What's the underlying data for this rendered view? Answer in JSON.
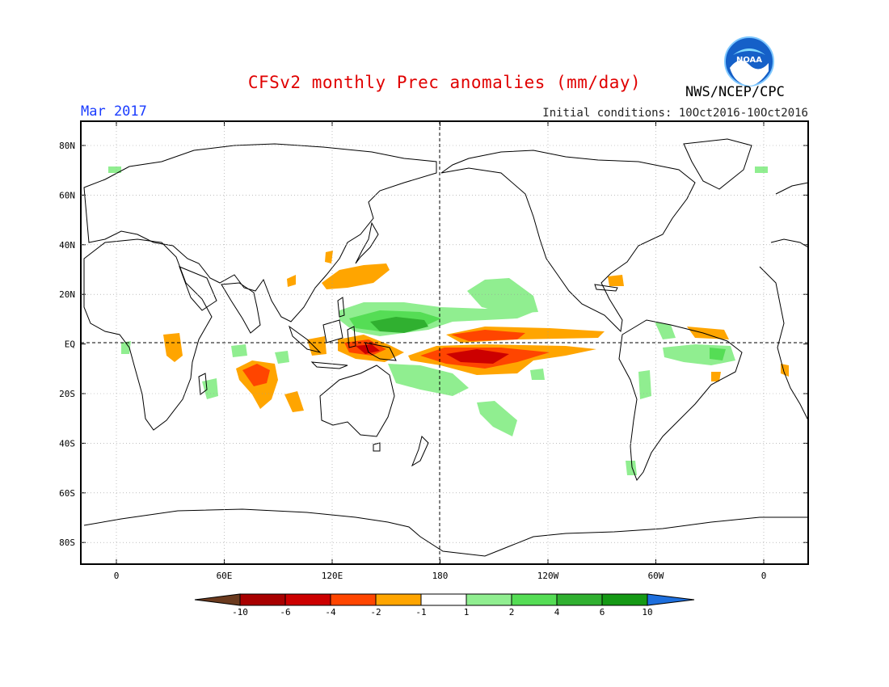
{
  "header": {
    "title": "CFSv2 monthly Prec anomalies (mm/day)",
    "title_color": "#e00000",
    "month": "Mar 2017",
    "month_color": "#1a3cff",
    "initial_conditions": "Initial conditions: 10Oct2016-10Oct2016",
    "agency": "NWS/NCEP/CPC",
    "logo_text": "NOAA"
  },
  "axes": {
    "lat_labels": [
      "80N",
      "60N",
      "40N",
      "20N",
      "EQ",
      "20S",
      "40S",
      "60S",
      "80S"
    ],
    "lon_labels": [
      "0",
      "60E",
      "120E",
      "180",
      "120W",
      "60W",
      "0"
    ]
  },
  "colorbar": {
    "tick_labels": [
      "-10",
      "-6",
      "-4",
      "-2",
      "-1",
      "1",
      "2",
      "4",
      "6",
      "10"
    ],
    "colors": [
      "#6b3a1e",
      "#a80000",
      "#cc0000",
      "#ff4500",
      "#ffa500",
      "#ffffff",
      "#90ee90",
      "#55dd55",
      "#30b030",
      "#159915",
      "#1e6fdd"
    ]
  }
}
